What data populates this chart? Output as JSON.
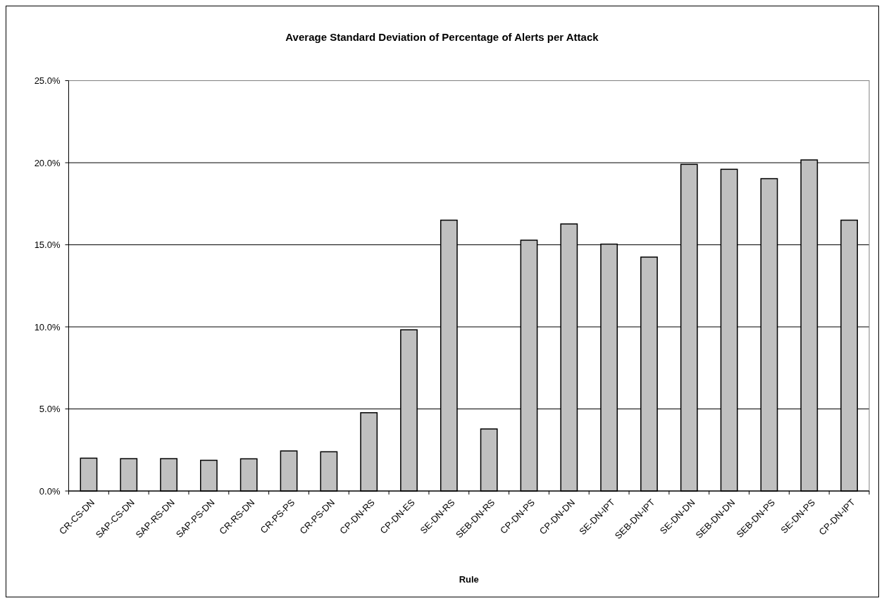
{
  "chart_data": {
    "type": "bar",
    "title": "Average Standard Deviation of Percentage of Alerts per Attack",
    "xlabel": "Rule",
    "categories": [
      "CR-CS-DN",
      "SAP-CS-DN",
      "SAP-RS-DN",
      "SAP-PS-DN",
      "CR-RS-DN",
      "CR-PS-PS",
      "CR-PS-DN",
      "CP-DN-RS",
      "CP-DN-ES",
      "SE-DN-RS",
      "SEB-DN-RS",
      "CP-DN-PS",
      "CP-DN-DN",
      "SE-DN-IPT",
      "SEB-DN-IPT",
      "SE-DN-DN",
      "SEB-DN-DN",
      "SEB-DN-PS",
      "SE-DN-PS",
      "CP-DN-IPT"
    ],
    "values": [
      2.0,
      1.97,
      1.97,
      1.87,
      1.96,
      2.44,
      2.39,
      4.77,
      9.82,
      16.5,
      3.78,
      15.28,
      16.27,
      15.04,
      14.25,
      19.9,
      19.6,
      19.03,
      20.17,
      16.5
    ],
    "color": "#c0c0c0",
    "ylim": [
      0,
      25
    ],
    "yticks": [
      {
        "value": 0,
        "label": "0.0%"
      },
      {
        "value": 5,
        "label": "5.0%"
      },
      {
        "value": 10,
        "label": "10.0%"
      },
      {
        "value": 15,
        "label": "15.0%"
      },
      {
        "value": 20,
        "label": "20.0%"
      },
      {
        "value": 25,
        "label": "25.0%"
      }
    ],
    "grid": "y"
  }
}
